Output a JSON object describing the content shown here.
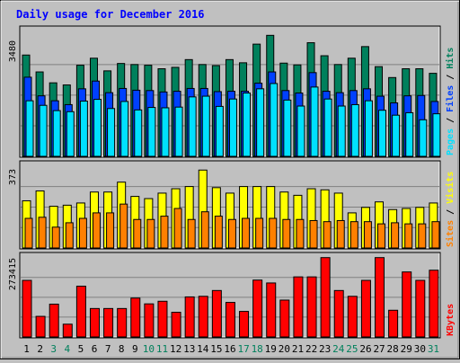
{
  "title": "Daily usage for December 2016",
  "colors": {
    "background": "#c0c0c0",
    "title": "#0000ff",
    "hits": "#00805c",
    "files": "#0040ff",
    "pages": "#00e0ff",
    "visits": "#ffff00",
    "sites": "#ff8000",
    "kbytes": "#ff0000",
    "weekday": "#000000",
    "weekend": "#00805c"
  },
  "chart_data": [
    {
      "type": "bar",
      "panel": "hits-files-pages",
      "ymax_label": "3480",
      "ymax": 3480,
      "grid": true,
      "categories": [
        "1",
        "2",
        "3",
        "4",
        "5",
        "6",
        "7",
        "8",
        "9",
        "10",
        "11",
        "12",
        "13",
        "14",
        "15",
        "16",
        "17",
        "18",
        "19",
        "20",
        "21",
        "22",
        "23",
        "24",
        "25",
        "26",
        "27",
        "28",
        "29",
        "30",
        "31"
      ],
      "weekend_days": [
        "3",
        "4",
        "10",
        "11",
        "17",
        "18",
        "24",
        "25",
        "31"
      ],
      "legend": [
        {
          "label": "Hits",
          "color": "#00805c"
        },
        {
          "label": "/",
          "color": "#000000"
        },
        {
          "label": "Files",
          "color": "#0040ff"
        },
        {
          "label": "/",
          "color": "#000000"
        },
        {
          "label": "Pages",
          "color": "#00e0ff"
        }
      ],
      "series": [
        {
          "name": "Hits",
          "values": [
            2880,
            2400,
            2090,
            2030,
            2590,
            2790,
            2430,
            2640,
            2610,
            2590,
            2490,
            2530,
            2750,
            2610,
            2580,
            2750,
            2660,
            3190,
            3440,
            2650,
            2600,
            3230,
            2860,
            2610,
            2790,
            3120,
            2550,
            2240,
            2490,
            2490,
            2360
          ]
        },
        {
          "name": "Files",
          "values": [
            2250,
            1720,
            1580,
            1470,
            1920,
            2140,
            1810,
            1930,
            1880,
            1870,
            1830,
            1850,
            1930,
            1930,
            1840,
            1850,
            1850,
            2080,
            2400,
            1870,
            1800,
            2380,
            1850,
            1810,
            1870,
            1920,
            1710,
            1520,
            1720,
            1730,
            1560
          ]
        },
        {
          "name": "Pages",
          "values": [
            1580,
            1450,
            1300,
            1270,
            1570,
            1620,
            1360,
            1560,
            1320,
            1390,
            1380,
            1400,
            1690,
            1710,
            1420,
            1630,
            1800,
            1920,
            2070,
            1600,
            1430,
            1970,
            1630,
            1430,
            1470,
            1580,
            1310,
            1170,
            1240,
            1040,
            1210
          ]
        }
      ]
    },
    {
      "type": "bar",
      "panel": "visits-sites",
      "ymax_label": "373",
      "ymax": 373,
      "grid": true,
      "categories": [
        "1",
        "2",
        "3",
        "4",
        "5",
        "6",
        "7",
        "8",
        "9",
        "10",
        "11",
        "12",
        "13",
        "14",
        "15",
        "16",
        "17",
        "18",
        "19",
        "20",
        "21",
        "22",
        "23",
        "24",
        "25",
        "26",
        "27",
        "28",
        "29",
        "30",
        "31"
      ],
      "legend": [
        {
          "label": "Visits",
          "color": "#ffff00"
        },
        {
          "label": "/",
          "color": "#000000"
        },
        {
          "label": "Sites",
          "color": "#ff8000"
        }
      ],
      "series": [
        {
          "name": "Visits",
          "values": [
            215,
            260,
            190,
            195,
            205,
            255,
            255,
            300,
            235,
            225,
            250,
            270,
            280,
            355,
            275,
            250,
            280,
            280,
            280,
            255,
            240,
            270,
            265,
            250,
            160,
            185,
            210,
            175,
            180,
            185,
            205
          ]
        },
        {
          "name": "Sites",
          "values": [
            135,
            140,
            95,
            115,
            135,
            160,
            160,
            200,
            130,
            130,
            145,
            180,
            130,
            165,
            145,
            130,
            135,
            135,
            135,
            130,
            130,
            125,
            120,
            125,
            120,
            120,
            110,
            115,
            110,
            110,
            120
          ]
        }
      ]
    },
    {
      "type": "bar",
      "panel": "kbytes",
      "ymax_label": "273415",
      "ymax": 273415,
      "grid": true,
      "categories": [
        "1",
        "2",
        "3",
        "4",
        "5",
        "6",
        "7",
        "8",
        "9",
        "10",
        "11",
        "12",
        "13",
        "14",
        "15",
        "16",
        "17",
        "18",
        "19",
        "20",
        "21",
        "22",
        "23",
        "24",
        "25",
        "26",
        "27",
        "28",
        "29",
        "30",
        "31"
      ],
      "legend": [
        {
          "label": "KBytes",
          "color": "#ff0000"
        }
      ],
      "series": [
        {
          "name": "KBytes",
          "values": [
            195000,
            71000,
            113000,
            44000,
            175000,
            98000,
            98000,
            98000,
            134000,
            114000,
            123000,
            85000,
            138000,
            140000,
            160000,
            119000,
            88000,
            196000,
            186000,
            127000,
            207000,
            207000,
            273415,
            160000,
            140000,
            195000,
            273415,
            92000,
            224000,
            195000,
            230000
          ]
        }
      ]
    }
  ]
}
